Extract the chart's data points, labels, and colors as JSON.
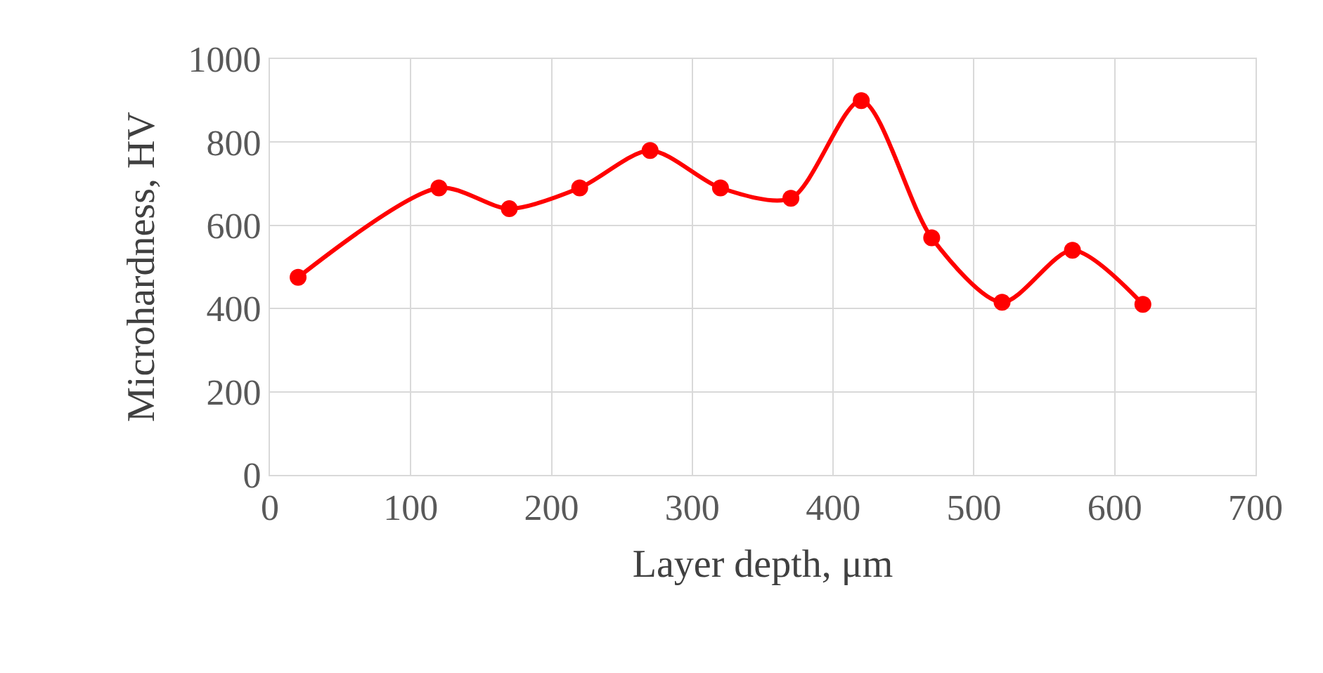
{
  "chart_data": {
    "type": "line",
    "xlabel": "Layer depth, μm",
    "ylabel": "Microhardness, HV",
    "x": [
      20,
      120,
      170,
      220,
      270,
      320,
      370,
      420,
      470,
      520,
      570,
      620
    ],
    "series": [
      {
        "color": "#ff0000",
        "values": [
          475,
          690,
          640,
          690,
          780,
          690,
          665,
          900,
          570,
          415,
          540,
          410
        ]
      }
    ],
    "xlim": [
      0,
      700
    ],
    "xticks": [
      0,
      100,
      200,
      300,
      400,
      500,
      600,
      700
    ],
    "ylim": [
      0,
      1000
    ],
    "yticks": [
      0,
      200,
      400,
      600,
      800,
      1000
    ],
    "grid": true,
    "marker": "circle",
    "line_style": "solid"
  }
}
